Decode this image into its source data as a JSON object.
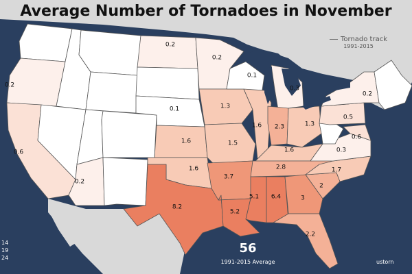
{
  "title": "Average Number of Tornadoes in November",
  "legend": {
    "track_label": "Tornado track",
    "track_years": "1991-2015"
  },
  "national_average": "56",
  "national_average_caption": "1991-2015 Average",
  "watermark": "ustorn",
  "color_key_fragments": [
    "14",
    "19",
    "24"
  ],
  "colors": {
    "ocean": "#2a3f5f",
    "land_outside": "#d9d9d9",
    "great_lakes": "#2a3f5f",
    "scale": [
      "#ffffff",
      "#fdf0eb",
      "#fbe1d6",
      "#f8cbb6",
      "#f4b197",
      "#ef9778",
      "#ea7f60"
    ]
  },
  "states": [
    {
      "id": "WA",
      "value": ""
    },
    {
      "id": "OR",
      "value": "0.2"
    },
    {
      "id": "CA",
      "value": "0.6"
    },
    {
      "id": "ID",
      "value": ""
    },
    {
      "id": "NV",
      "value": ""
    },
    {
      "id": "MT",
      "value": ""
    },
    {
      "id": "WY",
      "value": ""
    },
    {
      "id": "UT",
      "value": ""
    },
    {
      "id": "AZ",
      "value": "0.2"
    },
    {
      "id": "CO",
      "value": ""
    },
    {
      "id": "NM",
      "value": ""
    },
    {
      "id": "ND",
      "value": "0.2"
    },
    {
      "id": "SD",
      "value": ""
    },
    {
      "id": "NE",
      "value": "0.1"
    },
    {
      "id": "KS",
      "value": "1.6"
    },
    {
      "id": "OK",
      "value": "1.6"
    },
    {
      "id": "TX",
      "value": "8.2"
    },
    {
      "id": "MN",
      "value": "0.2"
    },
    {
      "id": "IA",
      "value": "1.3"
    },
    {
      "id": "MO",
      "value": "1.5"
    },
    {
      "id": "AR",
      "value": "3.7"
    },
    {
      "id": "LA",
      "value": "5.2"
    },
    {
      "id": "WI",
      "value": "0.1"
    },
    {
      "id": "IL",
      "value": "1.6"
    },
    {
      "id": "MI",
      "value": "0.3"
    },
    {
      "id": "IN",
      "value": "2.3"
    },
    {
      "id": "OH",
      "value": "1.3"
    },
    {
      "id": "KY",
      "value": "1.6"
    },
    {
      "id": "TN",
      "value": "2.8"
    },
    {
      "id": "MS",
      "value": "5.1"
    },
    {
      "id": "AL",
      "value": "6.4"
    },
    {
      "id": "GA",
      "value": "3"
    },
    {
      "id": "FL",
      "value": "2.2"
    },
    {
      "id": "SC",
      "value": "2"
    },
    {
      "id": "NC",
      "value": "1.7"
    },
    {
      "id": "VA",
      "value": "0.3"
    },
    {
      "id": "WV",
      "value": ""
    },
    {
      "id": "PA",
      "value": "0.5"
    },
    {
      "id": "NY",
      "value": "0.2"
    },
    {
      "id": "MD",
      "value": "0.6"
    },
    {
      "id": "NE_US",
      "value": ""
    }
  ]
}
